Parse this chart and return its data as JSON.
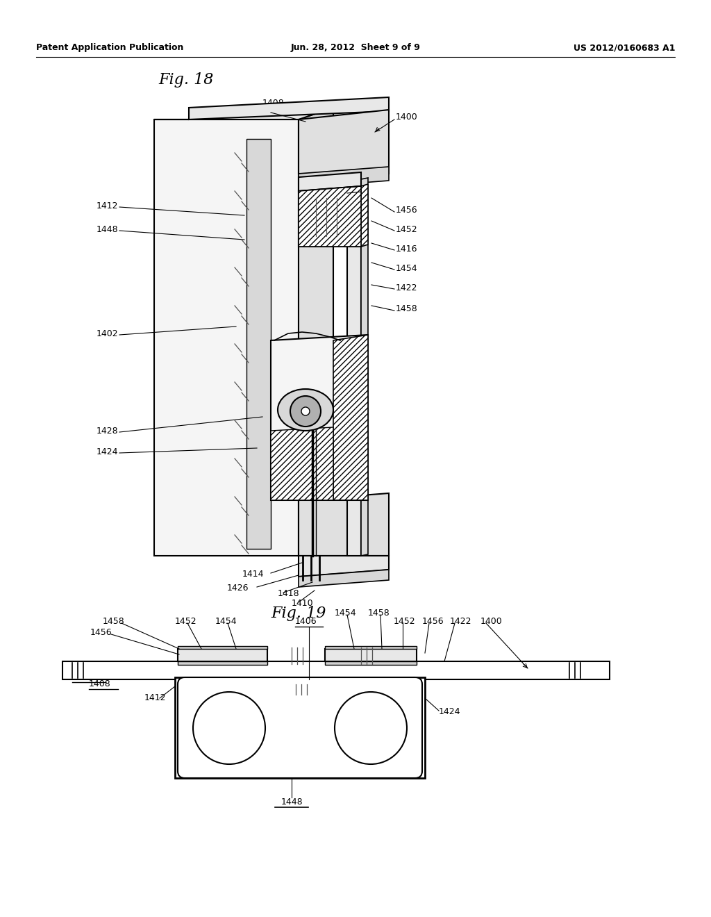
{
  "background_color": "#ffffff",
  "header_left": "Patent Application Publication",
  "header_center": "Jun. 28, 2012  Sheet 9 of 9",
  "header_right": "US 2012/0160683 A1",
  "fig18_title": "Fig. 18",
  "fig19_title": "Fig. 19",
  "lc": "#000000"
}
